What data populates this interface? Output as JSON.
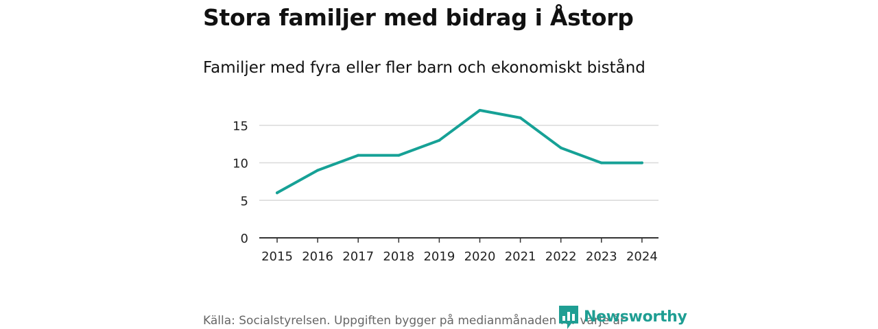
{
  "title": "Stora familjer med bidrag i Åstorp",
  "subtitle": "Familjer med fyra eller fler barn och ekonomiskt bistånd",
  "source": "Källa: Socialstyrelsen. Uppgiften bygger på medianmånaden för varje år",
  "brand": "Newsworthy",
  "colors": {
    "line": "#16a196",
    "grid": "#d9d9d9",
    "axis": "#333333",
    "brand": "#1f9e93"
  },
  "chart_data": {
    "type": "line",
    "x": [
      "2015",
      "2016",
      "2017",
      "2018",
      "2019",
      "2020",
      "2021",
      "2022",
      "2023",
      "2024"
    ],
    "series": [
      {
        "values": [
          6,
          9,
          11,
          11,
          13,
          17,
          16,
          12,
          10,
          10
        ]
      }
    ],
    "yticks": [
      0,
      5,
      10,
      15
    ],
    "ylim": [
      0,
      18
    ],
    "xlabel": "",
    "ylabel": "",
    "grid": true,
    "legend": "none"
  }
}
